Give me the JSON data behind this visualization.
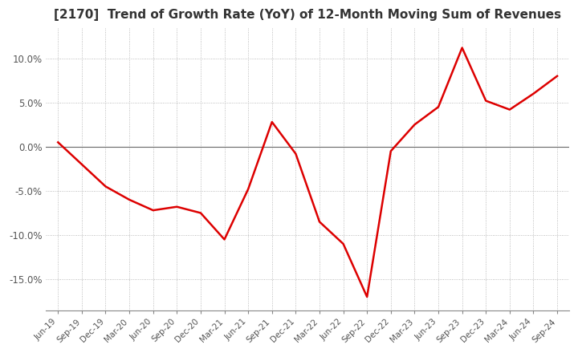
{
  "title": "[2170]  Trend of Growth Rate (YoY) of 12-Month Moving Sum of Revenues",
  "title_fontsize": 11,
  "line_color": "#dd0000",
  "background_color": "#ffffff",
  "grid_color": "#aaaaaa",
  "ylim": [
    -0.185,
    0.135
  ],
  "yticks": [
    -0.15,
    -0.1,
    -0.05,
    0.0,
    0.05,
    0.1
  ],
  "ytick_labels": [
    "-15.0%",
    "-10.0%",
    "-5.0%",
    "0.0%",
    "5.0%",
    "10.0%"
  ],
  "x_labels": [
    "Jun-19",
    "Sep-19",
    "Dec-19",
    "Mar-20",
    "Jun-20",
    "Sep-20",
    "Dec-20",
    "Mar-21",
    "Jun-21",
    "Sep-21",
    "Dec-21",
    "Mar-22",
    "Jun-22",
    "Sep-22",
    "Dec-22",
    "Mar-23",
    "Jun-23",
    "Sep-23",
    "Dec-23",
    "Mar-24",
    "Jun-24",
    "Sep-24"
  ],
  "values": [
    0.005,
    -0.02,
    -0.045,
    -0.06,
    -0.072,
    -0.068,
    -0.075,
    -0.105,
    -0.048,
    0.028,
    -0.008,
    -0.085,
    -0.11,
    -0.17,
    -0.005,
    0.025,
    0.045,
    0.112,
    0.052,
    0.042,
    0.06,
    0.08
  ]
}
